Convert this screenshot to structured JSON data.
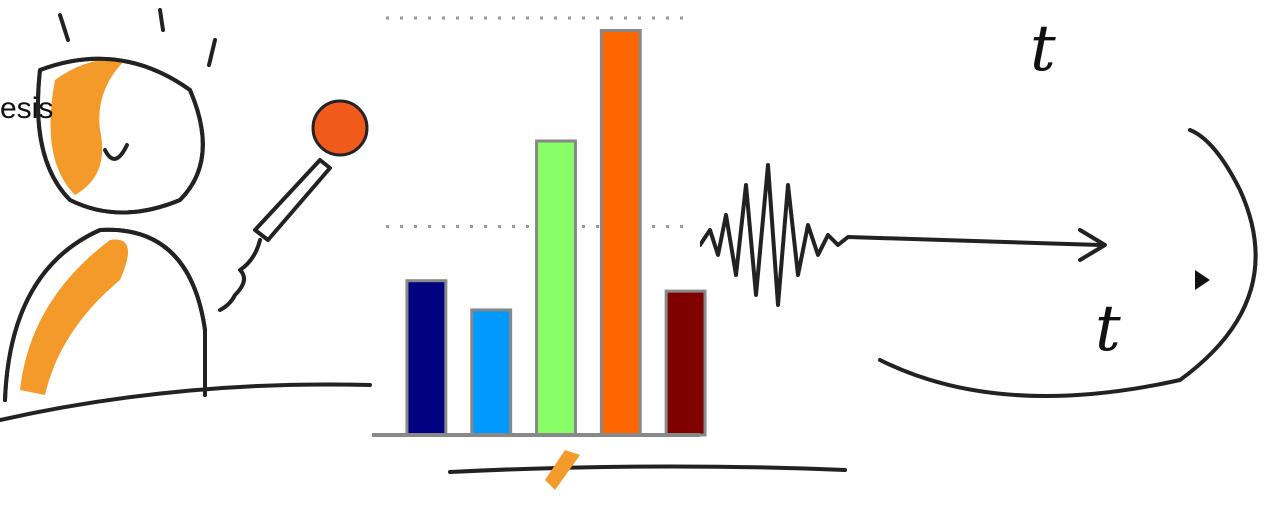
{
  "caption": "esis",
  "sketch_labels": [
    "t",
    "t"
  ],
  "chart_data": {
    "type": "bar",
    "categories": [
      null,
      null,
      null,
      null,
      null
    ],
    "values": [
      0.74,
      0.6,
      1.41,
      1.94,
      0.69
    ],
    "colors": [
      "#000080",
      "#0099ff",
      "#88ff66",
      "#ff6600",
      "#800000"
    ],
    "ylim": [
      0,
      2
    ],
    "yticks": [
      1,
      2
    ],
    "grid": true
  }
}
